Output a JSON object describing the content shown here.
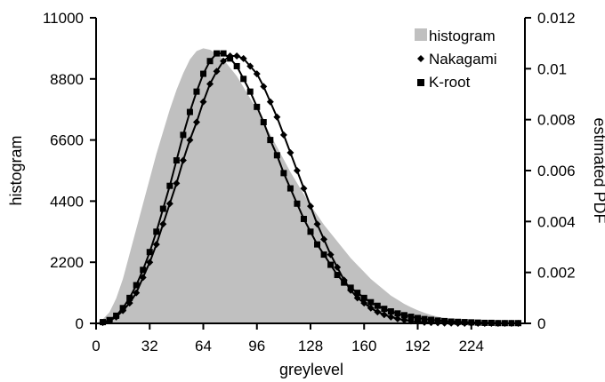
{
  "chart_data": {
    "type": "area",
    "xlabel": "greylevel",
    "ylabel": "histogram",
    "y2label": "estimated PDF",
    "xlim": [
      0,
      256
    ],
    "ylim": [
      0,
      11000
    ],
    "y2lim": [
      0,
      0.012
    ],
    "xticks": [
      0,
      32,
      64,
      96,
      128,
      160,
      192,
      224
    ],
    "yticks": [
      0,
      2200,
      4400,
      6600,
      8800,
      11000
    ],
    "y2ticks": [
      0,
      0.002,
      0.004,
      0.006,
      0.008,
      0.01,
      0.012
    ],
    "y2tick_labels": [
      "0",
      "0.002",
      "0.004",
      "0.006",
      "0.008",
      "0.01",
      "0.012"
    ],
    "legend_position": "top-right",
    "legend": [
      "histogram",
      "Nakagami",
      "K-root"
    ],
    "colors": {
      "histogram": "#c0c0c0",
      "curves": "#000000"
    },
    "series": [
      {
        "name": "histogram",
        "axis": "left",
        "style": "filled",
        "x": [
          0,
          4,
          8,
          12,
          16,
          20,
          24,
          28,
          32,
          36,
          40,
          44,
          48,
          52,
          56,
          60,
          64,
          68,
          72,
          76,
          80,
          84,
          88,
          92,
          96,
          100,
          104,
          108,
          112,
          116,
          120,
          124,
          128,
          132,
          136,
          140,
          144,
          148,
          152,
          156,
          160,
          164,
          168,
          172,
          176,
          180,
          184,
          188,
          192,
          196,
          200,
          204,
          208,
          212,
          216,
          220,
          224,
          228,
          232,
          236,
          240,
          244,
          248,
          252,
          256
        ],
        "values": [
          0,
          150,
          400,
          900,
          1600,
          2500,
          3400,
          4300,
          5200,
          6100,
          6900,
          7700,
          8400,
          9000,
          9500,
          9800,
          9900,
          9850,
          9700,
          9500,
          9200,
          8900,
          8500,
          8100,
          7700,
          7250,
          6800,
          6350,
          5900,
          5450,
          5050,
          4650,
          4250,
          3900,
          3550,
          3250,
          2950,
          2650,
          2350,
          2100,
          1850,
          1600,
          1400,
          1200,
          1000,
          850,
          700,
          580,
          470,
          380,
          300,
          240,
          190,
          150,
          120,
          95,
          75,
          60,
          48,
          38,
          30,
          22,
          15,
          8,
          0
        ]
      },
      {
        "name": "Nakagami",
        "axis": "right",
        "marker": "diamond",
        "x": [
          4,
          8,
          12,
          16,
          20,
          24,
          28,
          32,
          36,
          40,
          44,
          48,
          52,
          56,
          60,
          64,
          68,
          72,
          76,
          80,
          84,
          88,
          92,
          96,
          100,
          104,
          108,
          112,
          116,
          120,
          124,
          128,
          132,
          136,
          140,
          144,
          148,
          152,
          156,
          160,
          164,
          168,
          172,
          176,
          180,
          184,
          188,
          192,
          196,
          200,
          204,
          208,
          212,
          216,
          220,
          224,
          228,
          232,
          236,
          240,
          244,
          248,
          252
        ],
        "values": [
          3e-05,
          0.0001,
          0.00025,
          0.0005,
          0.0008,
          0.0012,
          0.0018,
          0.0024,
          0.0031,
          0.0039,
          0.0047,
          0.0055,
          0.0064,
          0.0072,
          0.0079,
          0.0087,
          0.0094,
          0.0099,
          0.0103,
          0.0105,
          0.0105,
          0.0104,
          0.0101,
          0.0098,
          0.0093,
          0.0087,
          0.0081,
          0.0074,
          0.0067,
          0.006,
          0.0053,
          0.0046,
          0.0039,
          0.0033,
          0.0027,
          0.0022,
          0.0017,
          0.0013,
          0.001,
          0.0008,
          0.0006,
          0.00045,
          0.00034,
          0.00025,
          0.00018,
          0.00013,
          9e-05,
          6e-05,
          4e-05,
          3e-05,
          2e-05,
          1e-05,
          1e-05,
          0.0,
          0.0,
          0.0,
          0.0,
          0.0,
          0.0,
          0.0,
          0.0,
          0.0,
          0.0
        ]
      },
      {
        "name": "K-root",
        "axis": "right",
        "marker": "square",
        "x": [
          4,
          8,
          12,
          16,
          20,
          24,
          28,
          32,
          36,
          40,
          44,
          48,
          52,
          56,
          60,
          64,
          68,
          72,
          76,
          80,
          84,
          88,
          92,
          96,
          100,
          104,
          108,
          112,
          116,
          120,
          124,
          128,
          132,
          136,
          140,
          144,
          148,
          152,
          156,
          160,
          164,
          168,
          172,
          176,
          180,
          184,
          188,
          192,
          196,
          200,
          204,
          208,
          212,
          216,
          220,
          224,
          228,
          232,
          236,
          240,
          244,
          248,
          252
        ],
        "values": [
          5e-05,
          0.00013,
          0.0003,
          0.0006,
          0.001,
          0.0015,
          0.0021,
          0.0028,
          0.0036,
          0.0045,
          0.0054,
          0.0064,
          0.0074,
          0.0083,
          0.0091,
          0.0098,
          0.0103,
          0.0106,
          0.0106,
          0.0104,
          0.0101,
          0.0096,
          0.0091,
          0.0085,
          0.0079,
          0.0072,
          0.0066,
          0.0059,
          0.0053,
          0.0047,
          0.0041,
          0.0036,
          0.0031,
          0.0027,
          0.0023,
          0.0019,
          0.0016,
          0.0014,
          0.0012,
          0.001,
          0.00083,
          0.00069,
          0.00057,
          0.00047,
          0.00039,
          0.00032,
          0.00026,
          0.00021,
          0.00017,
          0.00014,
          0.00011,
          9e-05,
          7e-05,
          6e-05,
          5e-05,
          4e-05,
          3e-05,
          2e-05,
          2e-05,
          1e-05,
          1e-05,
          1e-05,
          1e-05
        ]
      }
    ]
  }
}
